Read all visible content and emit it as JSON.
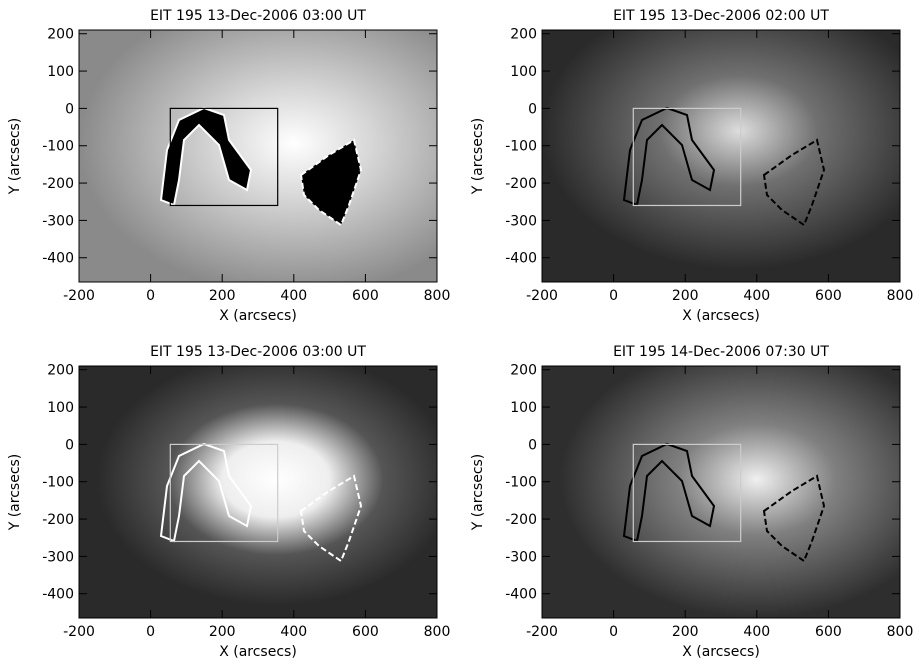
{
  "chart_data": [
    {
      "type": "image",
      "title": "EIT 195 13-Dec-2006 03:00 UT",
      "x_label": "X (arcsecs)",
      "y_label": "Y (arcsecs)",
      "xlim": [
        -200,
        800
      ],
      "ylim": [
        -465,
        210
      ],
      "xticks": [
        -200,
        0,
        200,
        400,
        600,
        800
      ],
      "yticks": [
        200,
        100,
        0,
        -100,
        -200,
        -300,
        -400
      ],
      "box": {
        "x": [
          55,
          355
        ],
        "y": [
          -260,
          0
        ],
        "color": "#000000"
      }
    },
    {
      "type": "image",
      "title": "EIT 195 13-Dec-2006 02:00 UT",
      "x_label": "X (arcsecs)",
      "y_label": "Y (arcsecs)",
      "xlim": [
        -200,
        800
      ],
      "ylim": [
        -465,
        210
      ],
      "xticks": [
        -200,
        0,
        200,
        400,
        600,
        800
      ],
      "yticks": [
        200,
        100,
        0,
        -100,
        -200,
        -300,
        -400
      ],
      "box": {
        "x": [
          55,
          355
        ],
        "y": [
          -260,
          0
        ],
        "color": "#cccccc"
      }
    },
    {
      "type": "image",
      "title": "EIT 195 13-Dec-2006 03:00 UT",
      "x_label": "X (arcsecs)",
      "y_label": "Y (arcsecs)",
      "xlim": [
        -200,
        800
      ],
      "ylim": [
        -465,
        210
      ],
      "xticks": [
        -200,
        0,
        200,
        400,
        600,
        800
      ],
      "yticks": [
        200,
        100,
        0,
        -100,
        -200,
        -300,
        -400
      ],
      "box": {
        "x": [
          55,
          355
        ],
        "y": [
          -260,
          0
        ],
        "color": "#cccccc"
      }
    },
    {
      "type": "image",
      "title": "EIT 195 14-Dec-2006 07:30 UT",
      "x_label": "X (arcsecs)",
      "y_label": "Y (arcsecs)",
      "xlim": [
        -200,
        800
      ],
      "ylim": [
        -465,
        210
      ],
      "xticks": [
        -200,
        0,
        200,
        400,
        600,
        800
      ],
      "yticks": [
        200,
        100,
        0,
        -100,
        -200,
        -300,
        -400
      ],
      "box": {
        "x": [
          55,
          355
        ],
        "y": [
          -260,
          0
        ],
        "color": "#cccccc"
      }
    }
  ]
}
